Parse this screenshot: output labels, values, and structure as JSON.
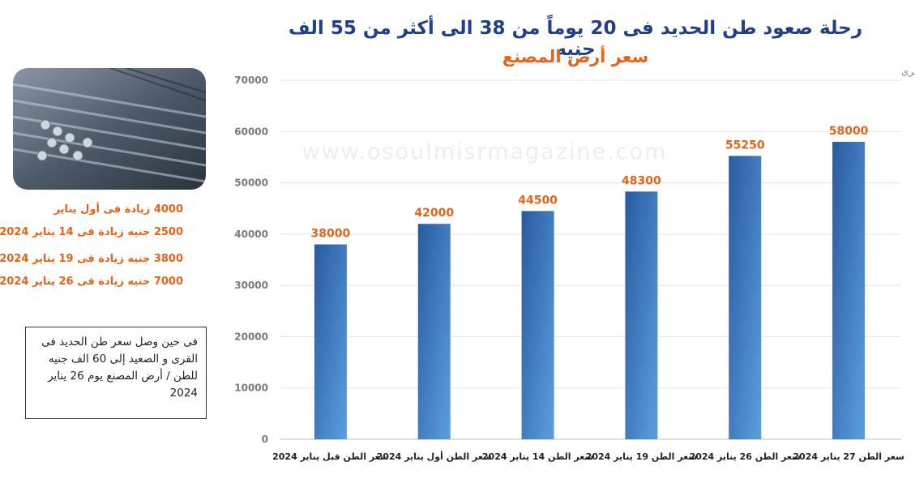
{
  "title": "رحلة صعود طن الحديد فى 20 يوماً من 38  الى أكثر من 55 الف جنيه",
  "subtitle": "سعر أرض المصنع",
  "watermark": "www.osoulmisrmagazine.com",
  "notes": [
    "4000 زيادة فى أول يناير",
    "2500 جنيه زيادة فى 14 يناير 2024",
    "3800 جنيه زيادة فى 19 يناير 2024",
    "7000 جنيه زيادة فى 26 يناير 2024"
  ],
  "info_box": "فى حين وصل سعر طن الحديد فى القرى و الصعيد إلى 60 الف جنيه للطن / أرض المصنع يوم 26 يناير 2024",
  "colors": {
    "title": "#1f3f8a",
    "accent": "#e8631a",
    "bar_top": "#2a5aa0",
    "bar_bottom": "#5b9ee0"
  },
  "chart_data": {
    "type": "bar",
    "ylabel": "القيمة بالجنيه المصرى",
    "ylim": [
      0,
      70000
    ],
    "yticks": [
      0,
      10000,
      20000,
      30000,
      40000,
      50000,
      60000,
      70000
    ],
    "grid": true,
    "categories": [
      "سعر الطن قبل يناير 2024",
      "سعر الطن أول يناير 2024",
      "سعر الطن 14 يناير 2024",
      "سعر الطن 19 يناير 2024",
      "سعر الطن 26 يناير 2024",
      "سعر الطن 27 يناير 2024"
    ],
    "values": [
      38000,
      42000,
      44500,
      48300,
      55250,
      58000
    ],
    "data_labels": [
      "38000",
      "42000",
      "44500",
      "48300",
      "55250",
      "58000"
    ]
  }
}
